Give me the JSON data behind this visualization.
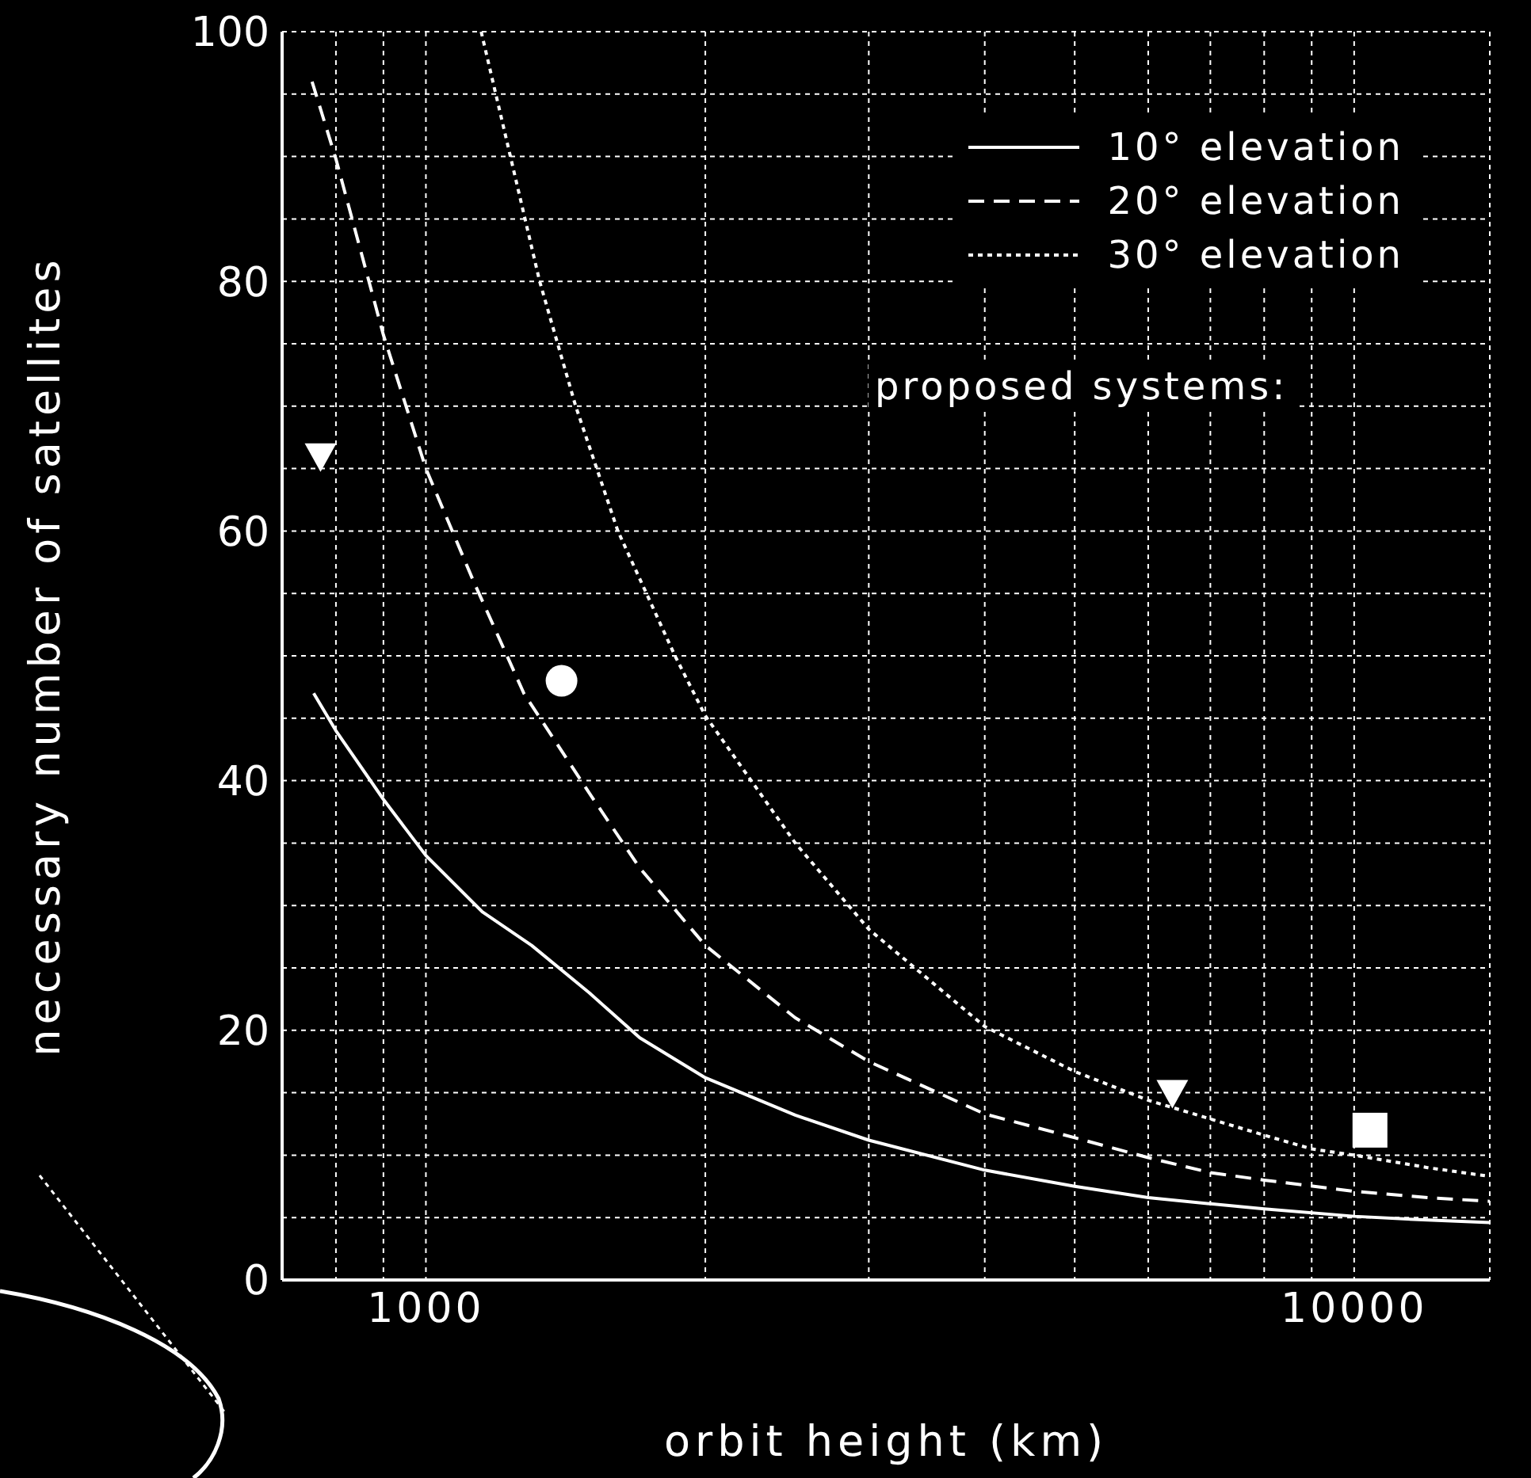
{
  "chart_data": {
    "type": "line",
    "xlabel": "orbit height (km)",
    "ylabel": "necessary number of satellites",
    "log": "x",
    "grid": true,
    "legend": "top right",
    "xlim": [
      700,
      14000
    ],
    "xticks": [
      {
        "value": 800,
        "label": null
      },
      {
        "value": 900,
        "label": null
      },
      1000,
      {
        "value": 2000,
        "label": null
      },
      {
        "value": 3000,
        "label": null
      },
      {
        "value": 4000,
        "label": null
      },
      {
        "value": 5000,
        "label": null
      },
      {
        "value": 6000,
        "label": null
      },
      {
        "value": 7000,
        "label": null
      },
      {
        "value": 8000,
        "label": null
      },
      {
        "value": 9000,
        "label": null
      },
      10000
    ],
    "ylim": [
      0,
      100
    ],
    "yticks": [
      0,
      {
        "value": 5,
        "label": null
      },
      {
        "value": 10,
        "label": null
      },
      {
        "value": 15,
        "label": null
      },
      20,
      {
        "value": 25,
        "label": null
      },
      {
        "value": 30,
        "label": null
      },
      {
        "value": 35,
        "label": null
      },
      40,
      {
        "value": 45,
        "label": null
      },
      {
        "value": 50,
        "label": null
      },
      {
        "value": 55,
        "label": null
      },
      60,
      {
        "value": 65,
        "label": null
      },
      {
        "value": 70,
        "label": null
      },
      {
        "value": 75,
        "label": null
      },
      80,
      {
        "value": 85,
        "label": null
      },
      {
        "value": 90,
        "label": null
      },
      {
        "value": 95,
        "label": null
      },
      100
    ],
    "annotations": [
      "proposed systems:"
    ],
    "series": [
      {
        "name": "10° elevation",
        "color": "#ffffff",
        "line_style": "solid",
        "x": [
          757,
          800,
          900,
          1000,
          1150,
          1300,
          1500,
          1700,
          2000,
          2500,
          3000,
          4000,
          5000,
          6000,
          7000,
          8000,
          10000,
          12000,
          14000
        ],
        "values": [
          47,
          44,
          38.5,
          34,
          29.5,
          26.8,
          23,
          19.4,
          16.2,
          13.2,
          11.2,
          8.8,
          7.5,
          6.6,
          6.1,
          5.7,
          5.1,
          4.8,
          4.6
        ]
      },
      {
        "name": "20° elevation",
        "color": "#ffffff",
        "line_style": "dashed",
        "x": [
          754,
          800,
          900,
          1000,
          1125,
          1275,
          1500,
          1700,
          2000,
          2500,
          3000,
          4000,
          5000,
          6000,
          7000,
          8000,
          10000,
          12000,
          14000
        ],
        "values": [
          96,
          89.8,
          75.7,
          65,
          56,
          47,
          39,
          33,
          26.8,
          21,
          17.5,
          13.3,
          11.4,
          9.8,
          8.6,
          8,
          7.1,
          6.6,
          6.3
        ]
      },
      {
        "name": "30° elevation",
        "color": "#ffffff",
        "line_style": "dotted",
        "x": [
          1147,
          1326,
          1450,
          1610,
          1855,
          2000,
          2500,
          3000,
          4000,
          5000,
          6000,
          7000,
          8000,
          9000,
          10000,
          12000,
          14000
        ],
        "values": [
          100,
          80,
          70,
          60,
          50,
          45.2,
          35,
          28.1,
          20.3,
          16.7,
          14.4,
          12.9,
          11.6,
          10.5,
          10,
          9,
          8.3
        ]
      },
      {
        "type": "scatter",
        "color": "#ffffff",
        "marker": "triangle",
        "x": [
          770
        ],
        "values": [
          66
        ]
      },
      {
        "type": "scatter",
        "color": "#ffffff",
        "marker": "circle",
        "x": [
          1400
        ],
        "values": [
          48
        ]
      },
      {
        "type": "scatter",
        "color": "#ffffff",
        "marker": "triangle",
        "x": [
          6370
        ],
        "values": [
          15
        ]
      },
      {
        "type": "scatter",
        "color": "#ffffff",
        "marker": "square",
        "x": [
          10400
        ],
        "values": [
          12
        ]
      }
    ]
  }
}
